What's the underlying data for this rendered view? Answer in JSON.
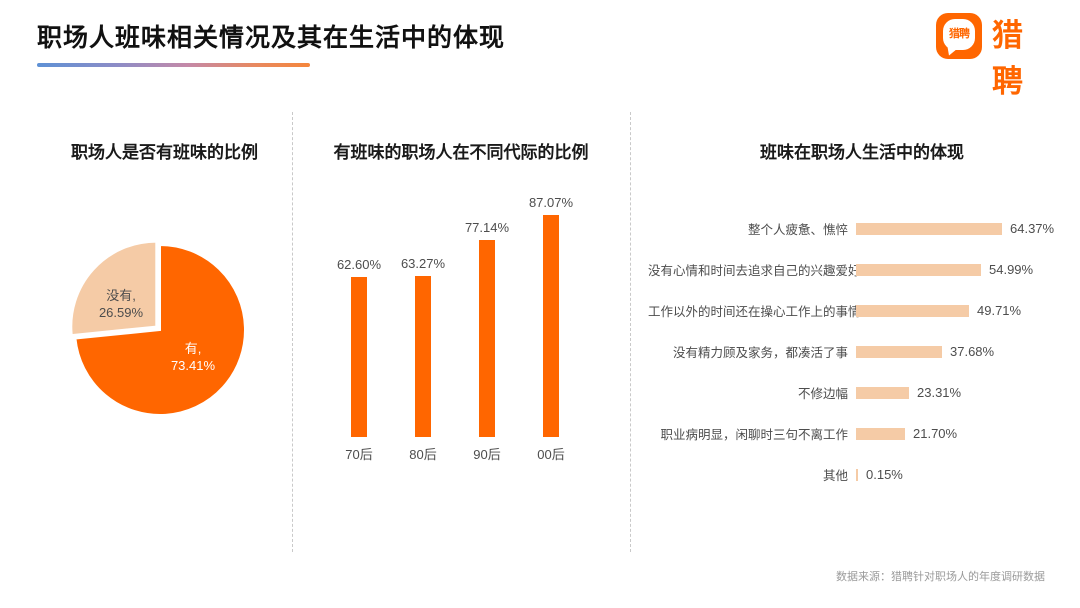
{
  "page": {
    "title": "职场人班味相关情况及其在生活中的体现",
    "source_note": "数据来源：猎聘针对职场人的年度调研数据"
  },
  "logo": {
    "brand": "猎聘",
    "bubble_text": "猎聘",
    "color": "#FF6600"
  },
  "colors": {
    "primary_orange": "#FF6600",
    "light_peach": "#F5CBA6",
    "label_gray": "#4d4d4d",
    "divider_gray": "#c9c9c9"
  },
  "chart_data": [
    {
      "id": "banwei-pie",
      "type": "pie",
      "title": "职场人是否有班味的比例",
      "slices": [
        {
          "label": "有",
          "value": 73.41,
          "label_lines": [
            "有,",
            "73.41%"
          ],
          "color": "#FF6600",
          "text_color": "#ffffff"
        },
        {
          "label": "没有",
          "value": 26.59,
          "label_lines": [
            "没有,",
            "26.59%"
          ],
          "color": "#F5CBA6",
          "text_color": "#4d4d4d"
        }
      ]
    },
    {
      "id": "generation-bars",
      "type": "bar",
      "title": "有班味的职场人在不同代际的比例",
      "categories": [
        "70后",
        "80后",
        "90后",
        "00后"
      ],
      "values": [
        62.6,
        63.27,
        77.14,
        87.07
      ],
      "value_labels": [
        "62.60%",
        "63.27%",
        "77.14%",
        "87.07%"
      ],
      "bar_color": "#FF6600",
      "ylim": [
        0,
        95
      ],
      "grid": false
    },
    {
      "id": "life-impact-bars",
      "type": "bar-horizontal",
      "title": "班味在职场人生活中的体现",
      "categories": [
        "整个人疲惫、憔悴",
        "没有心情和时间去追求自己的兴趣爱好",
        "工作以外的时间还在操心工作上的事情",
        "没有精力顾及家务，都凑活了事",
        "不修边幅",
        "职业病明显，闲聊时三句不离工作",
        "其他"
      ],
      "values": [
        64.37,
        54.99,
        49.71,
        37.68,
        23.31,
        21.7,
        0.15
      ],
      "value_labels": [
        "64.37%",
        "54.99%",
        "49.71%",
        "37.68%",
        "23.31%",
        "21.70%",
        "0.15%"
      ],
      "bar_color": "#F5CBA6",
      "xlim": [
        0,
        70
      ],
      "grid": false
    }
  ]
}
